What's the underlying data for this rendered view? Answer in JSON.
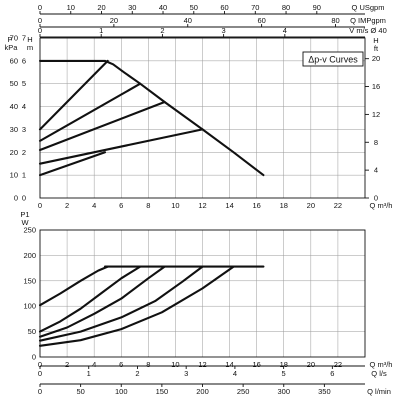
{
  "chart_data": [
    {
      "type": "line",
      "title": "",
      "legend_label": "Δp-v Curves",
      "legend_position": "top-right",
      "grid": true,
      "xlabel": "Q m³/h",
      "xlim": [
        0,
        24
      ],
      "x_ticks": [
        0,
        2,
        4,
        6,
        8,
        10,
        12,
        14,
        16,
        18,
        20,
        22
      ],
      "left_axes": [
        {
          "label": "P",
          "unit": "kPa",
          "range": [
            0,
            70
          ],
          "ticks": [
            0,
            10,
            20,
            30,
            40,
            50,
            60,
            70
          ]
        },
        {
          "label": "H",
          "unit": "m",
          "range": [
            0,
            7
          ],
          "ticks": [
            0,
            1,
            2,
            3,
            4,
            5,
            6,
            7
          ]
        }
      ],
      "right_axis": {
        "label": "H",
        "unit": "ft",
        "range": [
          0,
          22.97
        ],
        "ticks": [
          0,
          4,
          8,
          12,
          16,
          20
        ]
      },
      "top_axes": [
        {
          "label": "Q USgpm",
          "range": [
            0,
            105.67
          ],
          "ticks": [
            0,
            10,
            20,
            30,
            40,
            50,
            60,
            70,
            80,
            90
          ]
        },
        {
          "label": "Q IMPgpm",
          "range": [
            0,
            87.99
          ],
          "ticks": [
            0,
            20,
            40,
            60,
            80
          ]
        },
        {
          "label": "V m/s Ø 40",
          "range": [
            0,
            5.31
          ],
          "ticks": [
            0,
            1,
            2,
            3,
            4
          ]
        }
      ],
      "series": [
        {
          "x": [
            0,
            4.8
          ],
          "y": [
            1.0,
            2.0
          ]
        },
        {
          "x": [
            0,
            12.0
          ],
          "y": [
            1.5,
            3.0
          ]
        },
        {
          "x": [
            0,
            9.2
          ],
          "y": [
            2.1,
            4.2
          ]
        },
        {
          "x": [
            0,
            7.4
          ],
          "y": [
            2.5,
            5.0
          ]
        },
        {
          "x": [
            0,
            5.0
          ],
          "y": [
            3.0,
            6.0
          ]
        },
        {
          "x": [
            0,
            4.8,
            5.4,
            6.2,
            7.4,
            9.2,
            12.0,
            14.3,
            16.5
          ],
          "y": [
            6.0,
            6.0,
            5.85,
            5.5,
            5.0,
            4.2,
            3.0,
            2.0,
            1.0
          ]
        }
      ]
    },
    {
      "type": "line",
      "title": "",
      "grid": true,
      "xlabel": "Q m³/h",
      "xlim": [
        0,
        24
      ],
      "x_ticks": [
        0,
        2,
        4,
        6,
        8,
        10,
        12,
        14,
        16,
        18,
        20,
        22
      ],
      "ylabel": "P1 W",
      "ylim": [
        0,
        250
      ],
      "y_ticks": [
        0,
        50,
        100,
        150,
        200,
        250
      ],
      "bottom_axes": [
        {
          "label": "Q l/s",
          "range": [
            0,
            6.67
          ],
          "ticks": [
            0,
            1,
            2,
            3,
            4,
            5,
            6
          ]
        },
        {
          "label": "Q l/min",
          "range": [
            0,
            400
          ],
          "ticks": [
            0,
            50,
            100,
            150,
            200,
            250,
            300,
            350
          ]
        }
      ],
      "series": [
        {
          "x": [
            0,
            1.5,
            3.0,
            4.3,
            5.0
          ],
          "y": [
            102,
            125,
            150,
            170,
            178
          ]
        },
        {
          "x": [
            0,
            1.5,
            3.0,
            4.5,
            6.0,
            7.4
          ],
          "y": [
            50,
            70,
            95,
            125,
            155,
            178
          ]
        },
        {
          "x": [
            0,
            2.0,
            4.0,
            6.0,
            8.0,
            9.2
          ],
          "y": [
            40,
            58,
            85,
            115,
            155,
            178
          ]
        },
        {
          "x": [
            0,
            3.0,
            6.0,
            8.5,
            10.5,
            12.0
          ],
          "y": [
            32,
            50,
            78,
            110,
            148,
            178
          ]
        },
        {
          "x": [
            0,
            3.0,
            6.0,
            9.0,
            12.0,
            14.3
          ],
          "y": [
            22,
            33,
            55,
            88,
            135,
            178
          ]
        },
        {
          "x": [
            4.8,
            16.5
          ],
          "y": [
            178,
            178
          ]
        }
      ]
    }
  ]
}
